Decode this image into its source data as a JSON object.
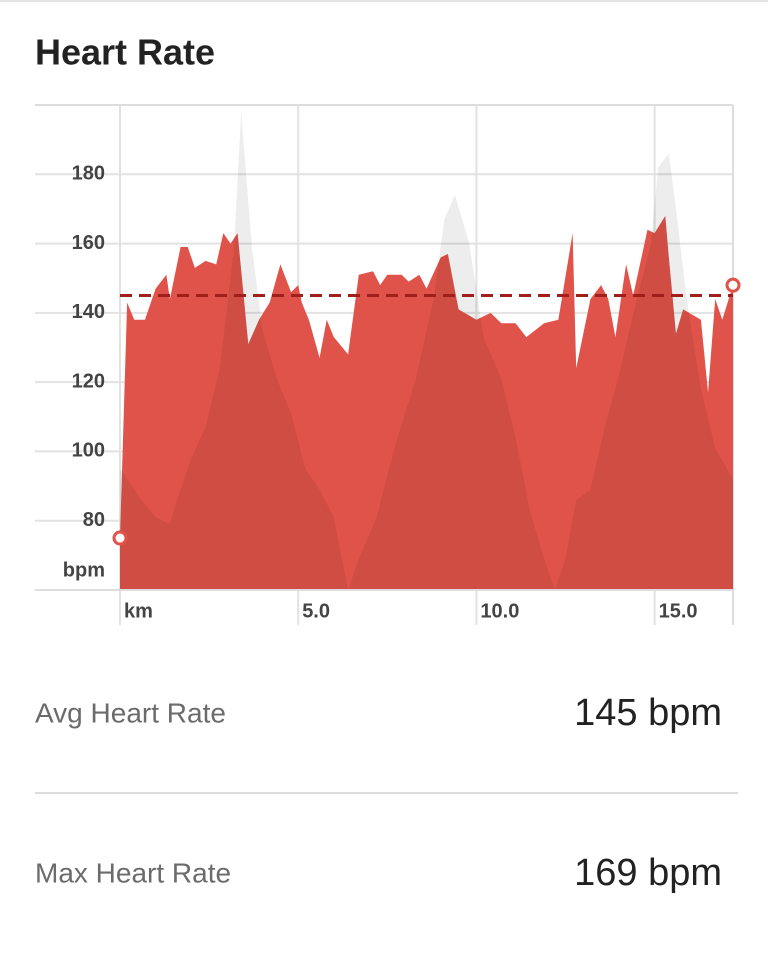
{
  "header": {
    "title": "Heart Rate"
  },
  "chart_data": {
    "type": "area",
    "y_label": "bpm",
    "xlim": [
      0,
      17.2
    ],
    "ylim": [
      60,
      200
    ],
    "xticks": [
      {
        "value": 0,
        "label": "km"
      },
      {
        "value": 5,
        "label": "5.0"
      },
      {
        "value": 10,
        "label": "10.0"
      },
      {
        "value": 15,
        "label": "15.0"
      }
    ],
    "yticks": [
      80,
      100,
      120,
      140,
      160,
      180
    ],
    "grid": true,
    "series": [
      {
        "color": "#e0534a",
        "markers": true,
        "x": [
          0,
          0.2,
          0.4,
          0.7,
          1.0,
          1.3,
          1.4,
          1.7,
          1.9,
          2.1,
          2.4,
          2.7,
          2.9,
          3.1,
          3.3,
          3.6,
          3.9,
          4.2,
          4.5,
          4.8,
          5.0,
          5.1,
          5.3,
          5.6,
          5.8,
          6.0,
          6.4,
          6.7,
          7.1,
          7.3,
          7.5,
          7.9,
          8.1,
          8.4,
          8.6,
          9.0,
          9.2,
          9.5,
          10.0,
          10.4,
          10.7,
          11.1,
          11.4,
          11.9,
          12.3,
          12.7,
          12.8,
          13.2,
          13.5,
          13.7,
          13.9,
          14.2,
          14.4,
          14.8,
          15.0,
          15.3,
          15.4,
          15.6,
          15.8,
          16.3,
          16.5,
          16.7,
          16.9,
          17.2
        ],
        "values": [
          75,
          143,
          138,
          138,
          147,
          151,
          144,
          159,
          159,
          153,
          155,
          154,
          163,
          160,
          163,
          131,
          138,
          143,
          154,
          146,
          148,
          143,
          138,
          127,
          138,
          133,
          128,
          151,
          152,
          148,
          151,
          151,
          149,
          151,
          147,
          156,
          157,
          141,
          138,
          140,
          137,
          137,
          133,
          137,
          138,
          163,
          124,
          144,
          148,
          144,
          133,
          154,
          145,
          164,
          163,
          168,
          156,
          134,
          141,
          138,
          117,
          144,
          138,
          148
        ]
      },
      {
        "color": "#000000",
        "x": [
          0,
          0.6,
          1.0,
          1.4,
          1.6,
          2.0,
          2.4,
          2.8,
          3.2,
          3.4,
          3.7,
          4.0,
          4.4,
          4.8,
          5.2,
          5.6,
          6.0,
          6.4,
          6.7,
          7.2,
          7.7,
          8.3,
          8.8,
          9.1,
          9.4,
          9.8,
          10.2,
          10.7,
          11.1,
          11.5,
          11.9,
          12.2,
          12.5,
          12.8,
          13.2,
          13.6,
          14.0,
          14.5,
          14.9,
          15.1,
          15.4,
          15.6,
          15.9,
          16.3,
          16.7,
          17.2
        ],
        "values": [
          95,
          86,
          81,
          79,
          86,
          98,
          107,
          124,
          159,
          198,
          159,
          135,
          121,
          111,
          95,
          89,
          81,
          60,
          69,
          81,
          101,
          121,
          144,
          167,
          174,
          160,
          133,
          121,
          104,
          83,
          69,
          60,
          69,
          86,
          89,
          107,
          122,
          144,
          160,
          182,
          186,
          170,
          144,
          118,
          101,
          92
        ]
      }
    ]
  },
  "stats": [
    {
      "label": "Avg Heart Rate",
      "value": 145,
      "value_label": "145 bpm"
    },
    {
      "label": "Max Heart Rate",
      "value_label": "169 bpm"
    }
  ]
}
